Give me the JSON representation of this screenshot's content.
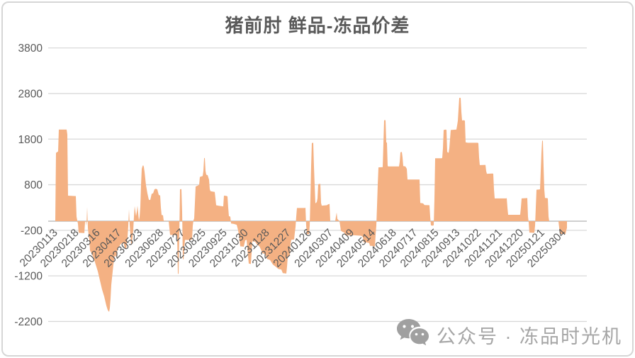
{
  "chart_data": {
    "type": "area",
    "title": "猪前肘 鲜品-冻品价差",
    "grid": true,
    "legend": "none",
    "y_axis": {
      "min": -2200,
      "max": 3800,
      "ticks": [
        3800,
        2800,
        1800,
        800,
        -200,
        -1200,
        -2200
      ]
    },
    "x_axis": {
      "tick_labels": [
        "20230113",
        "20230218",
        "20230316",
        "20230417",
        "20230523",
        "20230628",
        "20230727",
        "20230825",
        "20230925",
        "20231030",
        "20231128",
        "20231227",
        "20240126",
        "20240307",
        "20240409",
        "20240514",
        "20240618",
        "20240717",
        "20240815",
        "20240913",
        "20241022",
        "20241121",
        "20241220",
        "20250121",
        "20250304"
      ]
    },
    "series": [
      {
        "name": "鲜品-冻品价差",
        "color": "#F4B183",
        "points": [
          [
            68,
            0
          ],
          [
            77,
            0
          ],
          [
            78,
            0
          ],
          [
            79,
            1500
          ],
          [
            82,
            1530
          ],
          [
            83,
            2010
          ],
          [
            94,
            2010
          ],
          [
            95,
            1900
          ],
          [
            96,
            560
          ],
          [
            107,
            550
          ],
          [
            108,
            100
          ],
          [
            110,
            -60
          ],
          [
            111,
            -255
          ],
          [
            119,
            -260
          ],
          [
            120,
            -20
          ],
          [
            121,
            0
          ],
          [
            122,
            -100
          ],
          [
            123,
            310
          ],
          [
            124,
            -150
          ],
          [
            125,
            -300
          ],
          [
            126,
            -400
          ],
          [
            127,
            -640
          ],
          [
            129,
            -700
          ],
          [
            132,
            -800
          ],
          [
            135,
            -950
          ],
          [
            138,
            -1100
          ],
          [
            141,
            -1300
          ],
          [
            144,
            -1500
          ],
          [
            147,
            -1650
          ],
          [
            150,
            -1850
          ],
          [
            152,
            -1950
          ],
          [
            154,
            -1990
          ],
          [
            155,
            -1900
          ],
          [
            156,
            -1700
          ],
          [
            157,
            -1400
          ],
          [
            158,
            -1250
          ],
          [
            160,
            -950
          ],
          [
            162,
            -750
          ],
          [
            164,
            -790
          ],
          [
            166,
            -600
          ],
          [
            168,
            -560
          ],
          [
            170,
            -510
          ],
          [
            172,
            -480
          ],
          [
            174,
            -460
          ],
          [
            176,
            -580
          ],
          [
            178,
            -620
          ],
          [
            180,
            -350
          ],
          [
            181,
            -100
          ],
          [
            182,
            260
          ],
          [
            183,
            -80
          ],
          [
            184,
            -300
          ],
          [
            185,
            -500
          ],
          [
            186,
            -520
          ],
          [
            188,
            -200
          ],
          [
            189,
            100
          ],
          [
            190,
            330
          ],
          [
            192,
            110
          ],
          [
            193,
            200
          ],
          [
            194,
            340
          ],
          [
            196,
            20
          ],
          [
            197,
            100
          ],
          [
            198,
            310
          ],
          [
            199,
            800
          ],
          [
            200,
            1150
          ],
          [
            201,
            1200
          ],
          [
            202,
            1230
          ],
          [
            203,
            1190
          ],
          [
            204,
            1080
          ],
          [
            206,
            790
          ],
          [
            208,
            610
          ],
          [
            210,
            470
          ],
          [
            212,
            465
          ],
          [
            214,
            600
          ],
          [
            216,
            610
          ],
          [
            218,
            700
          ],
          [
            220,
            710
          ],
          [
            222,
            695
          ],
          [
            224,
            575
          ],
          [
            226,
            565
          ],
          [
            227,
            300
          ],
          [
            228,
            135
          ],
          [
            230,
            130
          ],
          [
            231,
            10
          ],
          [
            238,
            0
          ],
          [
            240,
            -300
          ],
          [
            248,
            -310
          ],
          [
            250,
            -320
          ],
          [
            251,
            -1150
          ],
          [
            252,
            -1160
          ],
          [
            253,
            -300
          ],
          [
            254,
            700
          ],
          [
            256,
            705
          ],
          [
            257,
            200
          ],
          [
            258,
            -830
          ],
          [
            259,
            -840
          ],
          [
            260,
            -600
          ],
          [
            261,
            -410
          ],
          [
            268,
            -415
          ],
          [
            271,
            -400
          ],
          [
            272,
            -100
          ],
          [
            273,
            20
          ],
          [
            274,
            60
          ],
          [
            275,
            400
          ],
          [
            276,
            760
          ],
          [
            279,
            780
          ],
          [
            281,
            800
          ],
          [
            282,
            970
          ],
          [
            286,
            990
          ],
          [
            287,
            1100
          ],
          [
            288,
            1380
          ],
          [
            289,
            1390
          ],
          [
            290,
            1100
          ],
          [
            291,
            1020
          ],
          [
            293,
            1010
          ],
          [
            295,
            910
          ],
          [
            296,
            700
          ],
          [
            297,
            660
          ],
          [
            300,
            650
          ],
          [
            303,
            640
          ],
          [
            304,
            500
          ],
          [
            305,
            350
          ],
          [
            308,
            340
          ],
          [
            312,
            330
          ],
          [
            315,
            325
          ],
          [
            316,
            560
          ],
          [
            319,
            555
          ],
          [
            321,
            545
          ],
          [
            322,
            300
          ],
          [
            323,
            110
          ],
          [
            325,
            100
          ],
          [
            326,
            -50
          ],
          [
            330,
            -60
          ],
          [
            334,
            -80
          ],
          [
            336,
            -200
          ],
          [
            337,
            -300
          ],
          [
            339,
            -550
          ],
          [
            344,
            -560
          ],
          [
            346,
            -420
          ],
          [
            348,
            -410
          ],
          [
            349,
            -600
          ],
          [
            351,
            -930
          ],
          [
            354,
            -940
          ],
          [
            355,
            -700
          ],
          [
            356,
            -440
          ],
          [
            360,
            -450
          ],
          [
            363,
            -520
          ],
          [
            366,
            -550
          ],
          [
            369,
            -650
          ],
          [
            370,
            -700
          ],
          [
            374,
            -720
          ],
          [
            377,
            -830
          ],
          [
            381,
            -850
          ],
          [
            385,
            -950
          ],
          [
            389,
            -1000
          ],
          [
            393,
            -1050
          ],
          [
            397,
            -1060
          ],
          [
            399,
            -1140
          ],
          [
            404,
            -1150
          ],
          [
            405,
            -1000
          ],
          [
            406,
            -780
          ],
          [
            409,
            -760
          ],
          [
            410,
            -500
          ],
          [
            411,
            -410
          ],
          [
            415,
            -400
          ],
          [
            416,
            -250
          ],
          [
            417,
            -130
          ],
          [
            418,
            100
          ],
          [
            419,
            290
          ],
          [
            430,
            290
          ],
          [
            431,
            295
          ],
          [
            432,
            -100
          ],
          [
            433,
            -280
          ],
          [
            436,
            -290
          ],
          [
            437,
            -100
          ],
          [
            438,
            500
          ],
          [
            439,
            1200
          ],
          [
            440,
            1715
          ],
          [
            442,
            1720
          ],
          [
            443,
            1200
          ],
          [
            444,
            780
          ],
          [
            445,
            390
          ],
          [
            447,
            420
          ],
          [
            448,
            500
          ],
          [
            449,
            810
          ],
          [
            452,
            820
          ],
          [
            453,
            400
          ],
          [
            454,
            340
          ],
          [
            461,
            350
          ],
          [
            463,
            370
          ],
          [
            465,
            380
          ],
          [
            466,
            0
          ],
          [
            473,
            0
          ],
          [
            474,
            100
          ],
          [
            475,
            190
          ],
          [
            476,
            50
          ],
          [
            479,
            0
          ],
          [
            480,
            -100
          ],
          [
            481,
            -210
          ],
          [
            484,
            -240
          ],
          [
            486,
            -250
          ],
          [
            487,
            -310
          ],
          [
            500,
            -310
          ],
          [
            510,
            -320
          ],
          [
            512,
            -350
          ],
          [
            513,
            -460
          ],
          [
            519,
            -470
          ],
          [
            521,
            -480
          ],
          [
            522,
            -540
          ],
          [
            526,
            -545
          ],
          [
            528,
            -555
          ],
          [
            529,
            -560
          ],
          [
            530,
            -300
          ],
          [
            531,
            -100
          ],
          [
            532,
            340
          ],
          [
            533,
            800
          ],
          [
            534,
            1180
          ],
          [
            540,
            1185
          ],
          [
            541,
            1700
          ],
          [
            542,
            2210
          ],
          [
            543,
            2220
          ],
          [
            544,
            2210
          ],
          [
            545,
            1730
          ],
          [
            546,
            1720
          ],
          [
            547,
            1210
          ],
          [
            548,
            1200
          ],
          [
            563,
            1200
          ],
          [
            564,
            1300
          ],
          [
            565,
            1510
          ],
          [
            567,
            1520
          ],
          [
            568,
            1400
          ],
          [
            569,
            1210
          ],
          [
            572,
            1200
          ],
          [
            574,
            1150
          ],
          [
            575,
            915
          ],
          [
            592,
            915
          ],
          [
            593,
            400
          ],
          [
            597,
            390
          ],
          [
            599,
            355
          ],
          [
            606,
            350
          ],
          [
            607,
            100
          ],
          [
            608,
            -90
          ],
          [
            610,
            -100
          ],
          [
            612,
            -90
          ],
          [
            613,
            490
          ],
          [
            614,
            1380
          ],
          [
            623,
            1380
          ],
          [
            624,
            1390
          ],
          [
            625,
            1600
          ],
          [
            626,
            2000
          ],
          [
            629,
            2010
          ],
          [
            630,
            2000
          ],
          [
            631,
            1520
          ],
          [
            633,
            1500
          ],
          [
            634,
            1600
          ],
          [
            635,
            1800
          ],
          [
            636,
            2000
          ],
          [
            644,
            2010
          ],
          [
            645,
            2100
          ],
          [
            646,
            2200
          ],
          [
            647,
            2450
          ],
          [
            648,
            2700
          ],
          [
            649,
            2710
          ],
          [
            650,
            2700
          ],
          [
            651,
            2400
          ],
          [
            652,
            2210
          ],
          [
            655,
            2215
          ],
          [
            656,
            2200
          ],
          [
            657,
            1730
          ],
          [
            660,
            1720
          ],
          [
            674,
            1720
          ],
          [
            675,
            1710
          ],
          [
            676,
            1400
          ],
          [
            677,
            1230
          ],
          [
            685,
            1235
          ],
          [
            686,
            1100
          ],
          [
            687,
            1040
          ],
          [
            695,
            1045
          ],
          [
            696,
            1040
          ],
          [
            697,
            700
          ],
          [
            698,
            500
          ],
          [
            714,
            500
          ],
          [
            715,
            505
          ],
          [
            716,
            300
          ],
          [
            717,
            140
          ],
          [
            733,
            140
          ],
          [
            734,
            145
          ],
          [
            735,
            300
          ],
          [
            736,
            500
          ],
          [
            743,
            505
          ],
          [
            744,
            510
          ],
          [
            745,
            100
          ],
          [
            746,
            -30
          ],
          [
            747,
            -250
          ],
          [
            753,
            -255
          ],
          [
            754,
            -250
          ],
          [
            755,
            -100
          ],
          [
            756,
            300
          ],
          [
            757,
            690
          ],
          [
            761,
            695
          ],
          [
            762,
            700
          ],
          [
            763,
            1100
          ],
          [
            764,
            1500
          ],
          [
            765,
            1770
          ],
          [
            766,
            1760
          ],
          [
            767,
            1200
          ],
          [
            768,
            700
          ],
          [
            769,
            510
          ],
          [
            772,
            505
          ],
          [
            773,
            500
          ],
          [
            774,
            100
          ],
          [
            775,
            0
          ],
          [
            788,
            0
          ],
          [
            789,
            -140
          ],
          [
            790,
            -280
          ],
          [
            797,
            -280
          ],
          [
            798,
            -275
          ],
          [
            799,
            -200
          ],
          [
            800,
            -150
          ]
        ]
      }
    ]
  },
  "watermark": {
    "text": "公众号 · 冻品时光机",
    "icon": "wechat-icon"
  },
  "colors": {
    "area": "#F4B183",
    "gridline": "#D9D9D9",
    "axis_line": "#BFBFBF",
    "axis_text": "#595959",
    "title_text": "#595959",
    "watermark_text": "#A6A6A6",
    "watermark_icon": "#A0A0A0"
  }
}
